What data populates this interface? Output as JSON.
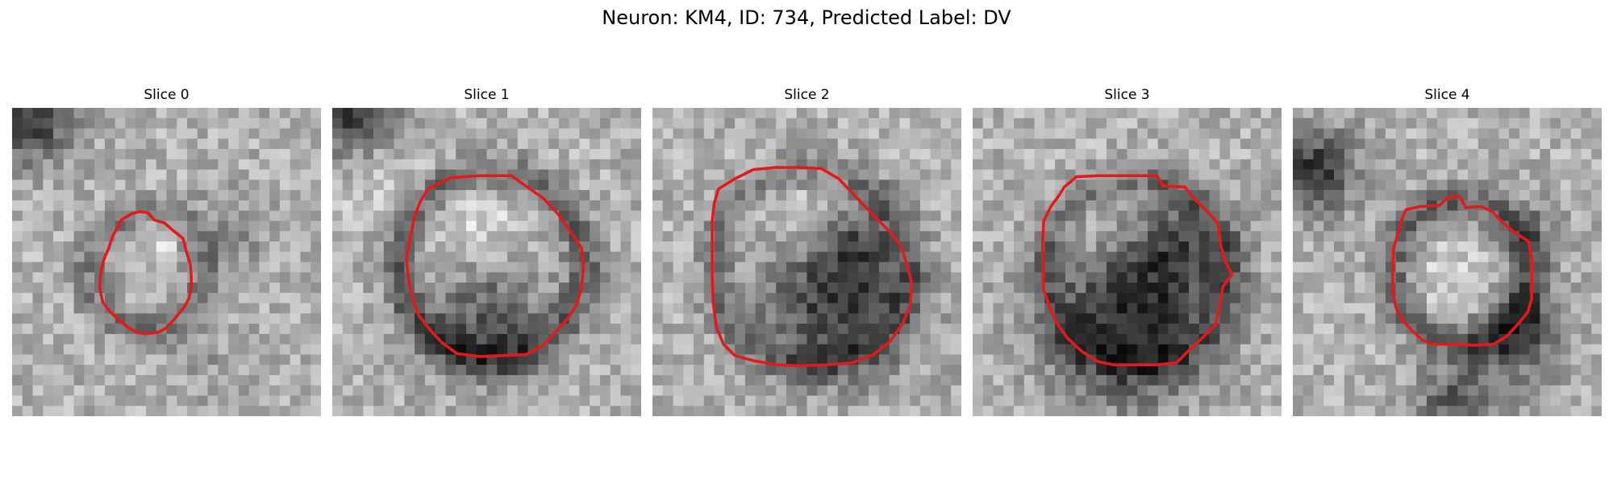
{
  "figure": {
    "title": "Neuron: KM4, ID: 734, Predicted Label: DV"
  },
  "panels": [
    {
      "title": "Slice 0"
    },
    {
      "title": "Slice 1"
    },
    {
      "title": "Slice 2"
    },
    {
      "title": "Slice 3"
    },
    {
      "title": "Slice 4"
    }
  ],
  "style": {
    "contour_color": "#e31a1c",
    "image_colormap": "grayscale"
  }
}
